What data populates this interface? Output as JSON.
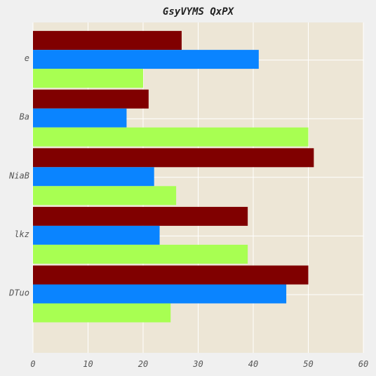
{
  "chart_data": {
    "type": "bar",
    "orientation": "horizontal",
    "title": "GsyVYMS QxPX",
    "xlabel": "",
    "ylabel": "",
    "categories": [
      "DTuo",
      "lkz",
      "NiaB",
      "Ba",
      "e"
    ],
    "series": [
      {
        "color": "#800000",
        "values": [
          50,
          39,
          51,
          21,
          27
        ]
      },
      {
        "color": "#0a84ff",
        "values": [
          46,
          23,
          22,
          17,
          41
        ]
      },
      {
        "color": "#a8ff52",
        "values": [
          25,
          39,
          26,
          50,
          20
        ]
      }
    ],
    "xlim": [
      0,
      60
    ],
    "xticks": [
      "0",
      "10",
      "20",
      "30",
      "40",
      "50",
      "60"
    ],
    "grid": true,
    "legend": "none",
    "colors": {
      "plot_background": "#ede6d6",
      "figure_background": "#f0f0f0",
      "grid": "#ffffff"
    }
  }
}
